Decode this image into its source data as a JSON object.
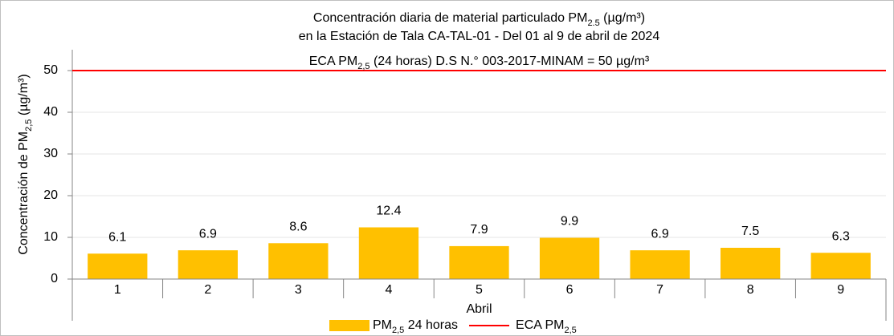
{
  "chart_data": {
    "type": "bar",
    "title": [
      [
        "Concentración diaria de material particulado PM",
        "2.5",
        " (µg/m³)"
      ],
      [
        "en la Estación de Tala CA-TAL-01  - Del 01 al 9 de abril de 2024"
      ]
    ],
    "y_label": [
      "Concentración de PM",
      "2,5",
      " (µg/m³)"
    ],
    "categories": [
      "1",
      "2",
      "3",
      "4",
      "5",
      "6",
      "7",
      "8",
      "9"
    ],
    "category_group": "Abril",
    "series": [
      {
        "name": [
          "PM",
          "2,5",
          " 24 horas"
        ],
        "color": "#ffc000",
        "values": [
          6.1,
          6.9,
          8.6,
          12.4,
          7.9,
          9.9,
          6.9,
          7.5,
          6.3
        ]
      }
    ],
    "reference_line": {
      "name": [
        "ECA PM",
        "2,5"
      ],
      "value": 50,
      "color": "#ff0000",
      "annotation": [
        "ECA PM",
        "2,5",
        " (24 horas) D.S N.° 003-2017-MINAM  = 50 µg/m³"
      ]
    },
    "ylim": [
      0,
      55
    ],
    "yticks": [
      0,
      10,
      20,
      30,
      40,
      50
    ],
    "grid": true
  }
}
